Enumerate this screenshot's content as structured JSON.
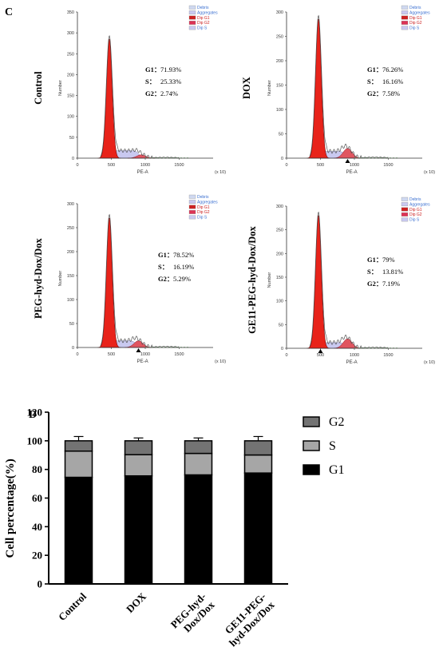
{
  "panel_c_letter": "C",
  "panel_d_letter": "D",
  "chart_data": [
    {
      "type": "histogram",
      "panel": "C",
      "title": "Control",
      "xlabel": "PE-A",
      "ylabel": "Number",
      "x_unit": "(x 10)",
      "xlim": [
        0,
        2000
      ],
      "ylim": [
        0,
        350
      ],
      "xticks": [
        "0",
        "500",
        "1000",
        "1500"
      ],
      "yticks": [
        "0",
        "50",
        "100",
        "150",
        "200",
        "250",
        "300",
        "350"
      ],
      "legend": [
        "Debris",
        "Aggregates",
        "Dip G1",
        "Dip G2",
        "Dip S"
      ],
      "stats": [
        {
          "label": "G1",
          "value": "71.93%"
        },
        {
          "label": "S",
          "value": "25.33%"
        },
        {
          "label": "G2",
          "value": "2.74%"
        }
      ],
      "g1_peak": {
        "x": 470,
        "height": 285
      },
      "g2_peak": {
        "x": 940,
        "height": 8
      },
      "s_level": 18
    },
    {
      "type": "histogram",
      "panel": "C",
      "title": "DOX",
      "xlabel": "PE-A",
      "ylabel": "Number",
      "x_unit": "(x 10)",
      "xlim": [
        0,
        2000
      ],
      "ylim": [
        0,
        300
      ],
      "xticks": [
        "0",
        "500",
        "1000",
        "1500"
      ],
      "yticks": [
        "0",
        "50",
        "100",
        "150",
        "200",
        "250",
        "300"
      ],
      "legend": [
        "Debris",
        "Aggregates",
        "Dip G1",
        "Dip G2",
        "Dip S"
      ],
      "stats": [
        {
          "label": "G1",
          "value": "76.26%"
        },
        {
          "label": "S",
          "value": "16.16%"
        },
        {
          "label": "G2",
          "value": "7.58%"
        }
      ],
      "g1_peak": {
        "x": 470,
        "height": 285
      },
      "g2_peak": {
        "x": 900,
        "height": 20
      },
      "s_level": 14
    },
    {
      "type": "histogram",
      "panel": "C",
      "title": "PEG-hyd-Dox/Dox",
      "xlabel": "PE-A",
      "ylabel": "Number",
      "x_unit": "(x 10)",
      "xlim": [
        0,
        2000
      ],
      "ylim": [
        0,
        300
      ],
      "xticks": [
        "0",
        "500",
        "1000",
        "1500"
      ],
      "yticks": [
        "0",
        "50",
        "100",
        "150",
        "200",
        "250",
        "300"
      ],
      "legend": [
        "Debris",
        "Aggregates",
        "Dip G1",
        "Dip G2",
        "Dip S"
      ],
      "stats": [
        {
          "label": "G1",
          "value": "78.52%"
        },
        {
          "label": "S",
          "value": "16.19%"
        },
        {
          "label": "G2",
          "value": "5.29%"
        }
      ],
      "g1_peak": {
        "x": 470,
        "height": 270
      },
      "g2_peak": {
        "x": 900,
        "height": 14
      },
      "s_level": 14
    },
    {
      "type": "histogram",
      "panel": "C",
      "title": "GE11-PEG-hyd-Dox/Dox",
      "xlabel": "PE-A",
      "ylabel": "Number",
      "x_unit": "(x 10)",
      "xlim": [
        0,
        2000
      ],
      "ylim": [
        0,
        300
      ],
      "xticks": [
        "0",
        "500",
        "1000",
        "1500"
      ],
      "yticks": [
        "0",
        "50",
        "100",
        "150",
        "200",
        "250",
        "300"
      ],
      "legend": [
        "Debris",
        "Aggregates",
        "Dip G1",
        "Dip G2",
        "Dip S"
      ],
      "stats": [
        {
          "label": "G1",
          "value": "79%"
        },
        {
          "label": "S",
          "value": "13.81%"
        },
        {
          "label": "G2",
          "value": "7.19%"
        }
      ],
      "g1_peak": {
        "x": 470,
        "height": 280
      },
      "g2_peak": {
        "x": 900,
        "height": 20
      },
      "s_level": 12
    },
    {
      "type": "bar",
      "stacked": true,
      "panel": "D",
      "categories": [
        "Control",
        "DOX",
        "PEG-hyd-Dox/Dox",
        "GE11-PEG-hyd-Dox/Dox"
      ],
      "category_lines": [
        [
          "Control"
        ],
        [
          "DOX"
        ],
        [
          "PEG-hyd-",
          "Dox/Dox"
        ],
        [
          "GE11-PEG-",
          "hyd-Dox/Dox"
        ]
      ],
      "ylabel": "Cell percentage(%)",
      "ylim": [
        0,
        120
      ],
      "yticks": [
        "0",
        "20",
        "40",
        "60",
        "80",
        "100",
        "120"
      ],
      "legend_position": "right",
      "series": [
        {
          "name": "G1",
          "values": [
            74.5,
            75.5,
            76.2,
            77.5
          ],
          "errors": [
            3,
            2,
            3,
            3
          ],
          "color": "#000000"
        },
        {
          "name": "S",
          "values": [
            18.3,
            14.8,
            15.0,
            12.6
          ],
          "errors": [
            2,
            2,
            2,
            2
          ],
          "color": "#a6a6a6"
        },
        {
          "name": "G2",
          "values": [
            7.2,
            9.7,
            8.8,
            9.9
          ],
          "errors": [
            3,
            2,
            2,
            3
          ],
          "color": "#737373"
        }
      ]
    }
  ],
  "colors": {
    "g1_fill": "#e8231a",
    "s_fill": "#c9c9f0",
    "g2_fill": "#e05560",
    "debris": "#cfd8f0",
    "aggregates": "#c9c9f0",
    "dip_g1": "#cc2222",
    "dip_g2": "#dd3355",
    "dip_s": "#c9c9f0"
  }
}
